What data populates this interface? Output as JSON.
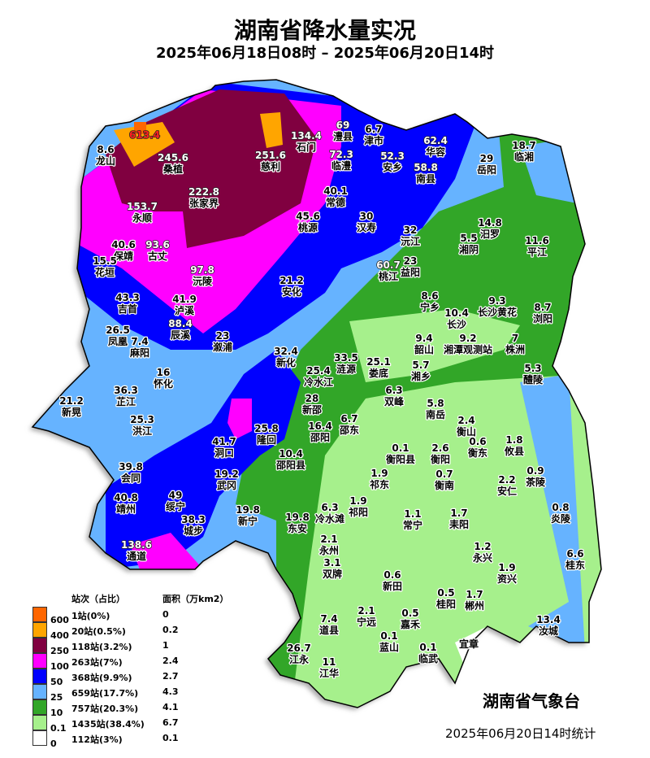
{
  "title": "湖南省降水量实况",
  "subtitle": "2025年06月18日08时 – 2025年06月20日14时",
  "agency": "湖南省气象台",
  "stat_time": "2025年06月20日14时统计",
  "legend": {
    "header_count": "站次（占比）",
    "header_area": "面积（万km2）",
    "ticks": [
      "600",
      "400",
      "250",
      "100",
      "50",
      "25",
      "10",
      "0.1",
      "0"
    ],
    "rows": [
      {
        "color": "#ff6600",
        "count": "1站(0%)",
        "area": "0"
      },
      {
        "color": "#ffa500",
        "count": "20站(0.5%)",
        "area": "0.2"
      },
      {
        "color": "#800040",
        "count": "118站(3.2%)",
        "area": "1"
      },
      {
        "color": "#ff00ff",
        "count": "263站(7%)",
        "area": "2.4"
      },
      {
        "color": "#0000ff",
        "count": "368站(9.9%)",
        "area": "2.7"
      },
      {
        "color": "#66b3ff",
        "count": "659站(17.7%)",
        "area": "4.3"
      },
      {
        "color": "#32a628",
        "count": "757站(20.3%)",
        "area": "4.1"
      },
      {
        "color": "#a6f08c",
        "count": "1435站(38.4%)",
        "area": "6.7"
      },
      {
        "color": "#ffffff",
        "count": "112站(3%)",
        "area": "0.1"
      }
    ]
  },
  "stations": [
    {
      "name": "",
      "value": "613.4"
    },
    {
      "name": "龙山",
      "value": "8.6"
    },
    {
      "name": "桑植",
      "value": "245.6"
    },
    {
      "name": "张家界",
      "value": "222.8"
    },
    {
      "name": "永顺",
      "value": "153.7"
    },
    {
      "name": "慈利",
      "value": "251.6"
    },
    {
      "name": "石门",
      "value": "134.4"
    },
    {
      "name": "澧县",
      "value": "69"
    },
    {
      "name": "津市",
      "value": "6.7"
    },
    {
      "name": "临澧",
      "value": "72.3"
    },
    {
      "name": "安乡",
      "value": "52.3"
    },
    {
      "name": "南县",
      "value": "58.8"
    },
    {
      "name": "华容",
      "value": "62.4"
    },
    {
      "name": "岳阳",
      "value": "29"
    },
    {
      "name": "临湘",
      "value": "18.7"
    },
    {
      "name": "常德",
      "value": "40.1"
    },
    {
      "name": "桃源",
      "value": "45.6"
    },
    {
      "name": "汉寿",
      "value": "30"
    },
    {
      "name": "沅江",
      "value": "32"
    },
    {
      "name": "汨罗",
      "value": "14.8"
    },
    {
      "name": "湘阴",
      "value": "5.5"
    },
    {
      "name": "平江",
      "value": "11.6"
    },
    {
      "name": "桃江",
      "value": "60.7"
    },
    {
      "name": "益阳",
      "value": "23"
    },
    {
      "name": "保靖",
      "value": "40.6"
    },
    {
      "name": "古丈",
      "value": "93.6"
    },
    {
      "name": "花垣",
      "value": "15.5"
    },
    {
      "name": "沅陵",
      "value": "97.8"
    },
    {
      "name": "安化",
      "value": "21.2"
    },
    {
      "name": "宁乡",
      "value": "8.6"
    },
    {
      "name": "长沙",
      "value": "10.4"
    },
    {
      "name": "长沙黄花",
      "value": "9.3"
    },
    {
      "name": "浏阳",
      "value": "8.7"
    },
    {
      "name": "吉首",
      "value": "43.3"
    },
    {
      "name": "泸溪",
      "value": "41.9"
    },
    {
      "name": "辰溪",
      "value": "88.4"
    },
    {
      "name": "凤凰",
      "value": "26.5"
    },
    {
      "name": "麻阳",
      "value": "7.4"
    },
    {
      "name": "溆浦",
      "value": "23"
    },
    {
      "name": "韶山",
      "value": "9.4"
    },
    {
      "name": "湘潭观测站",
      "value": "9.2"
    },
    {
      "name": "株洲",
      "value": "7"
    },
    {
      "name": "湘乡",
      "value": "5.7"
    },
    {
      "name": "醴陵",
      "value": "5.3"
    },
    {
      "name": "新化",
      "value": "32.4"
    },
    {
      "name": "冷水江",
      "value": "25.4"
    },
    {
      "name": "涟源",
      "value": "33.5"
    },
    {
      "name": "娄底",
      "value": "25.1"
    },
    {
      "name": "怀化",
      "value": "16"
    },
    {
      "name": "双峰",
      "value": "6.3"
    },
    {
      "name": "芷江",
      "value": "36.3"
    },
    {
      "name": "新晃",
      "value": "21.2"
    },
    {
      "name": "新邵",
      "value": "28"
    },
    {
      "name": "邵阳",
      "value": "16.4"
    },
    {
      "name": "邵东",
      "value": "6.7"
    },
    {
      "name": "洪江",
      "value": "25.3"
    },
    {
      "name": "南岳",
      "value": "5.8"
    },
    {
      "name": "衡山",
      "value": "2.4"
    },
    {
      "name": "隆回",
      "value": "25.8"
    },
    {
      "name": "洞口",
      "value": "41.7"
    },
    {
      "name": "邵阳县",
      "value": "10.4"
    },
    {
      "name": "衡东",
      "value": "0.6"
    },
    {
      "name": "攸县",
      "value": "1.8"
    },
    {
      "name": "衡阳县",
      "value": "0.1"
    },
    {
      "name": "衡阳",
      "value": "2.6"
    },
    {
      "name": "会同",
      "value": "39.8"
    },
    {
      "name": "祁东",
      "value": "1.9"
    },
    {
      "name": "衡南",
      "value": "0.7"
    },
    {
      "name": "安仁",
      "value": "2.2"
    },
    {
      "name": "茶陵",
      "value": "0.9"
    },
    {
      "name": "武冈",
      "value": "19.2"
    },
    {
      "name": "靖州",
      "value": "40.8"
    },
    {
      "name": "绥宁",
      "value": "49"
    },
    {
      "name": "冷水滩",
      "value": "6.3"
    },
    {
      "name": "祁阳",
      "value": "1.9"
    },
    {
      "name": "城步",
      "value": "38.3"
    },
    {
      "name": "新宁",
      "value": "19.8"
    },
    {
      "name": "东安",
      "value": "19.8"
    },
    {
      "name": "常宁",
      "value": "1.1"
    },
    {
      "name": "耒阳",
      "value": "1.7"
    },
    {
      "name": "炎陵",
      "value": "0.8"
    },
    {
      "name": "永州",
      "value": "2.1"
    },
    {
      "name": "双牌",
      "value": "3.1"
    },
    {
      "name": "通道",
      "value": "138.6"
    },
    {
      "name": "永兴",
      "value": "1.2"
    },
    {
      "name": "资兴",
      "value": "1.9"
    },
    {
      "name": "桂东",
      "value": "6.6"
    },
    {
      "name": "新田",
      "value": "0.6"
    },
    {
      "name": "桂阳",
      "value": "0.5"
    },
    {
      "name": "郴州",
      "value": "1.7"
    },
    {
      "name": "道县",
      "value": "7.4"
    },
    {
      "name": "宁远",
      "value": "2.1"
    },
    {
      "name": "嘉禾",
      "value": "0.5"
    },
    {
      "name": "蓝山",
      "value": "0.1"
    },
    {
      "name": "汝城",
      "value": "13.4"
    },
    {
      "name": "宜章",
      "value": ""
    },
    {
      "name": "临武",
      "value": "0.1"
    },
    {
      "name": "江永",
      "value": "26.7"
    },
    {
      "name": "江华",
      "value": "11"
    }
  ]
}
